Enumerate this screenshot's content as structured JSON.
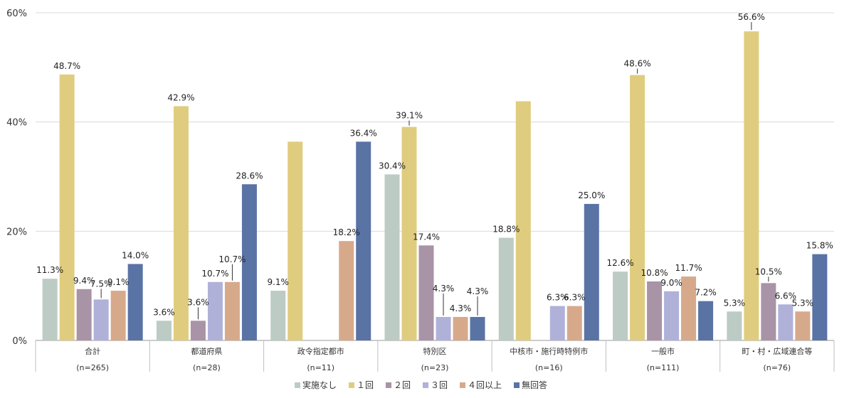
{
  "chart_data": {
    "type": "bar",
    "y_unit_suffix": "%",
    "ylim": [
      0,
      60
    ],
    "y_ticks": [
      0,
      20,
      40,
      60
    ],
    "y_tick_labels": [
      "0%",
      "20%",
      "40%",
      "60%"
    ],
    "grid": true,
    "legend_position": "bottom",
    "categories": [
      "合計",
      "都道府県",
      "政令指定都市",
      "特別区",
      "中核市・施行時特例市",
      "一般市",
      "町・村・広域連合等"
    ],
    "category_sub_labels": [
      "(n=265)",
      "(n=28)",
      "(n=11)",
      "(n=23)",
      "(n=16)",
      "(n=111)",
      "(n=76)"
    ],
    "series": [
      {
        "name": "実施なし",
        "color": "#bccbc3",
        "values": [
          11.3,
          3.6,
          9.1,
          30.4,
          18.8,
          12.6,
          5.3
        ],
        "labels": [
          "11.3%",
          "3.6%",
          "9.1%",
          "30.4%",
          "18.8%",
          "12.6%",
          "5.3%"
        ]
      },
      {
        "name": "１回",
        "color": "#e0cc7e",
        "values": [
          48.7,
          42.9,
          36.4,
          39.1,
          43.8,
          48.6,
          56.6
        ],
        "labels": [
          "48.7%",
          "42.9%",
          "",
          "39.1%",
          "",
          "48.6%",
          "56.6%"
        ]
      },
      {
        "name": "２回",
        "color": "#a993a6",
        "values": [
          9.4,
          3.6,
          0,
          17.4,
          0,
          10.8,
          10.5
        ],
        "labels": [
          "9.4%",
          "3.6%",
          "",
          "17.4%",
          "",
          "10.8%",
          "10.5%"
        ]
      },
      {
        "name": "３回",
        "color": "#afb1d9",
        "values": [
          7.5,
          10.7,
          0,
          4.3,
          6.3,
          9.0,
          6.6
        ],
        "labels": [
          "7.5%",
          "10.7%",
          "",
          "4.3%",
          "6.3%",
          "9.0%",
          "6.6%"
        ]
      },
      {
        "name": "４回以上",
        "color": "#d7a98b",
        "values": [
          9.1,
          10.7,
          18.2,
          4.3,
          6.3,
          11.7,
          5.3
        ],
        "labels": [
          "9.1%",
          "10.7%",
          "18.2%",
          "4.3%",
          "6.3%",
          "11.7%",
          "5.3%"
        ]
      },
      {
        "name": "無回答",
        "color": "#5a73a5",
        "values": [
          14.0,
          28.6,
          36.4,
          4.3,
          25.0,
          7.2,
          15.8
        ],
        "labels": [
          "14.0%",
          "28.6%",
          "36.4%",
          "4.3%",
          "25.0%",
          "7.2%",
          "15.8%"
        ]
      }
    ]
  }
}
